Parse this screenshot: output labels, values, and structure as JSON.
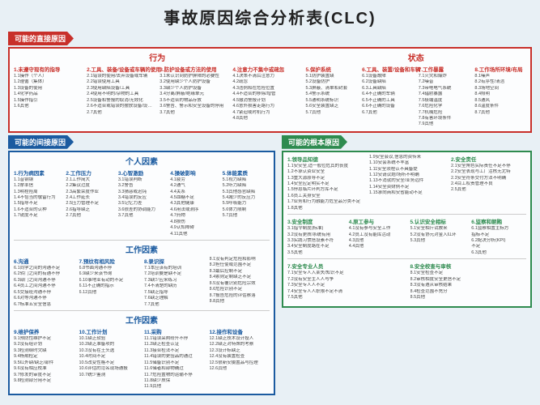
{
  "title": "事故原因综合分析表(CLC)",
  "sec1": {
    "tag": "可能的直接原因",
    "leftTitle": "行为",
    "rightTitle": "状态",
    "b": [
      {
        "h": "1.未遵守现有的指导",
        "i": [
          "1.1操作（个人）",
          "1.2遵循（集体）",
          "1.3设备的使用",
          "1.4化学药品",
          "1.5操作指引",
          "1.6其他"
        ]
      },
      {
        "h": "2.工具、装备/设备或车辆的使用",
        "i": [
          "2.1错误的使用/丢弃设备或车辆",
          "2.2错误使用工具",
          "2.3使用缺陷设备/工具",
          "2.4使用不明的/杂物的工具",
          "2.5设备和警报的取消/无效化",
          "2.6不适合或错误的摆放设备/设备或车辆",
          "2.7其他"
        ]
      },
      {
        "h": "3.防护设备或方法的使用",
        "i": [
          "3.1未认识到防护屏障的必要性",
          "3.2使用缺少个人防护设备",
          "3.3缺少个人防护设备",
          "3.4分离/屏蔽/绝缘单元",
          "3.5不适合的物品存放",
          "3.6警告、警示和安全设备的停用",
          "3.7其他"
        ]
      },
      {
        "h": "4.注意力不集中或疏忽",
        "i": [
          "4.1决策不清后注意力",
          "4.2疏忽",
          "4.3违例和在危险位置",
          "4.4不适合的移除/增管",
          "4.5撤消警报计划",
          "4.6意外损害走路行为",
          "4.7紧迫或时机行为",
          "4.8其他"
        ]
      }
    ],
    "s": [
      {
        "h": "5.保护系统",
        "i": [
          "5.1防护装置缺",
          "5.2设备防护",
          "5.3屏蔽、清单和封套",
          "5.4警示系统",
          "5.5通明系统标识",
          "5.6安全装置缺乏",
          "5.7其他"
        ]
      },
      {
        "h": "6.工具、装置/设备和车辆",
        "i": [
          "6.1设备故障",
          "6.2设备缺陷",
          "6.3工具缺陷",
          "6.4不正确的车辆",
          "6.5不正确的工具",
          "6.6不正确的设备",
          "6.7其他"
        ]
      },
      {
        "h": "7.工作暴露",
        "i": [
          "7.1火灾和爆炸",
          "7.2噪音",
          "7.3带电电气系统",
          "7.4辐射暴露",
          "7.5极端温度",
          "7.6危险化学",
          "7.7机械危险",
          "7.8有害环境条件",
          "7.9其他"
        ]
      },
      {
        "h": "8.工作场所环境/布局",
        "i": [
          "8.1噪声",
          "8.2有序性/清洁",
          "8.3场地空间",
          "8.4照明",
          "8.5通风",
          "8.6温度条件",
          "8.7其他"
        ]
      }
    ]
  },
  "sec2": {
    "tag": "可能的间接原因",
    "b1": {
      "title": "个人因素",
      "cols": [
        {
          "h": "1.行为病因素",
          "i": [
            "1.1音钢钢",
            "1.2摩率信",
            "1.3明程险周",
            "1.4不恰当的敬留行为",
            "1.5指导不足",
            "1.6不适合的认种",
            "1.7锐度不足"
          ]
        },
        {
          "h": "2.工作压力",
          "i": [
            "2.1工作简大",
            "2.2集议过度",
            "2.3高繁荣度作业",
            "2.4工作延长",
            "2.5压力管理不足",
            "2.6指导缺乏",
            "2.7其他"
          ]
        },
        {
          "h": "3.心智激励",
          "i": [
            "3.1错误判断",
            "3.2警告",
            "3.3猜惑或迟钝",
            "3.4错误的反应",
            "3.5记忆力差",
            "3.6很差的协调能力",
            "3.7其他"
          ]
        },
        {
          "h": "4.操破影响",
          "i": [
            "4.1疲劳",
            "4.2通气",
            "4.4关系",
            "4.5血糖不足"
          ],
          "ex": [
            "4.3其他健康",
            "4.6用法或测序",
            "4.7药物",
            "4.8损伤",
            "4.9认知障碍",
            "4.11其他"
          ]
        },
        {
          "h": "5.体能素质",
          "i": [
            "5.1视力缺陷",
            "5.2听力缺陷",
            "5.3其他感官缺陷",
            "5.4减少的反应力",
            "5.5呼吸能力",
            "5.6体力限制",
            "5.7其他"
          ]
        }
      ]
    },
    "b2": {
      "title": "工作因素",
      "cols": [
        {
          "h": "6.沟通",
          "i": [
            "6.1同学之间的沟通不足",
            "6.2转门之间的有通不停",
            "6.3部门之间沟通不停",
            "6.4员工之间沟通不停",
            "6.5交接班沟通不停",
            "6.6对等沟通不停",
            "6.7标准五安全信息",
            ""
          ]
        },
        {
          "h": "7.预纹有相风险",
          "i": [
            "6.8书面沟通不停",
            "6.9缺少来该书询",
            "6.10事地业有动的不足",
            "6.11不正确的指示",
            "6.12其他"
          ]
        },
        {
          "h": "8.录识探",
          "i": [
            "7.1本应该有的培训",
            "7.2培训要是缺不足",
            "7.3缺少应来练习",
            "7.4不清楚的缺历",
            "7.5缺乏指导",
            "7.6缺乏理解",
            "7.7其他"
          ]
        },
        {
          "h": "",
          "i": [
            "8.1没有判定危险和影响",
            "8.2担任使或范围不足",
            "8.3最后控制不足",
            "8.4索则定制缺乏不足",
            "8.5没有覆识别危险宗效",
            "8.6危险识别不足",
            "8.7报告危险的评估察落",
            "8.8其他"
          ]
        }
      ]
    },
    "b3": {
      "title": "工作因素",
      "cols": [
        {
          "h": "9.维护保养",
          "i": [
            "9.1预防性维护不足",
            "9.2没有组计划",
            "9.3检测纲时欠缺",
            "9.4杨期检定",
            "9.5红外缺/缺乏/部件",
            "9.6没有相应校准",
            "9.7修发的审度不足",
            "9.8检测部分用不足"
          ]
        },
        {
          "h": "10.工作计划",
          "i": [
            "10.1缺乏软验",
            "10.2缺乏准备项的",
            "10.3没有在土头选",
            "10.4时间不足",
            "10.5改变性格不足",
            "10.6评估的范名现场通报",
            "10.7统少鉴测"
          ]
        },
        {
          "h": "11.采购",
          "i": [
            "11.1错误采购纷升不停",
            "11.2缺乏检查认证",
            "11.3接合检法不足",
            "11.4错误的更验品的通过",
            "11.5储备识别不足",
            "11.6储者和部物确过",
            "11.7危险置物的运输不停",
            "11.8缺少质保",
            "11.9其他"
          ]
        },
        {
          "h": "12.接作和设备",
          "i": [
            "12.1缺乏技术设计投人",
            "12.2缺乏对特殊的考察",
            "12.3设计标缺乏",
            "12.4没有装置检查",
            "12.5很新安摄置品与控理",
            "12.6其他"
          ]
        }
      ]
    }
  },
  "sec3": {
    "tag": "可能的根本原因",
    "g": [
      [
        {
          "h": "1.领导品知德",
          "i": [
            "1.1安安全,适一般位危其的丧度",
            "1.2不承认资业安全",
            "1.3重大源原导不足",
            "1.4安全应定明实不足",
            "1.5停息临片环判方库不足",
            "1.6员工关身安全",
            "1.7业务和行为融能力危全品分类不足",
            "1.8其他"
          ]
        },
        {
          "h": "",
          "i": [
            "1.9安全会议,信息的资传来",
            "1.10安会系统不丰富",
            "1.11安全须程认不具备提",
            "1.12安请议题/场所不明确",
            "1.13不消就的安全/业务远件",
            "1.14安全资财例不足",
            "1.15承向商和安省能动不足"
          ]
        },
        {
          "h": "2.安全责任",
          "i": [
            "2.1安全角色实际责任不足不停",
            "2.2安全表现与工厂活核无尤特",
            "2.3安全符条交付方法不明确",
            "2.4目工权责管理不良",
            "2.5其他"
          ]
        }
      ],
      [
        {
          "h": "3.安全制度",
          "i": [
            "3.1指令制度(标准)",
            "3.2没有更质/系统有用",
            "3.3实践习惯搭设素不符",
            "3.4安全制度路在不足",
            "3.5其他"
          ]
        },
        {
          "h": "4.原工参与",
          "i": [
            "4.1没有参与安全工作",
            "4.2员工没有能库活动",
            "4.3其他",
            "4.4其他"
          ]
        },
        {
          "h": "5.认识安全相标",
          "i": [
            "5.1安全相斤试教来",
            "5.2没有协元对金入红环",
            "5.3其他"
          ]
        },
        {
          "h": "6.监察和朝贿",
          "i": [
            "6.1监察相置主标方",
            "指标不足",
            "6.2配决分析(KPI)",
            "不足",
            "6.3其他"
          ]
        }
      ],
      [
        {
          "h": "7.安全专业人员",
          "i": [
            "7.1安全专人入某失/知识不足",
            "7.2没有安全主人人与争",
            "7.3安全专人人不足",
            "7.4安全专人人职限不足不清",
            "7.5其他"
          ]
        },
        {
          "h": "8.安全校查与审核",
          "i": [
            "8.1安全检查不足",
            "8.2审核相度安全更信不足",
            "8.3没有遵从审核结果",
            "8.4检查范围不充分",
            "8.5其他"
          ]
        }
      ]
    ]
  }
}
